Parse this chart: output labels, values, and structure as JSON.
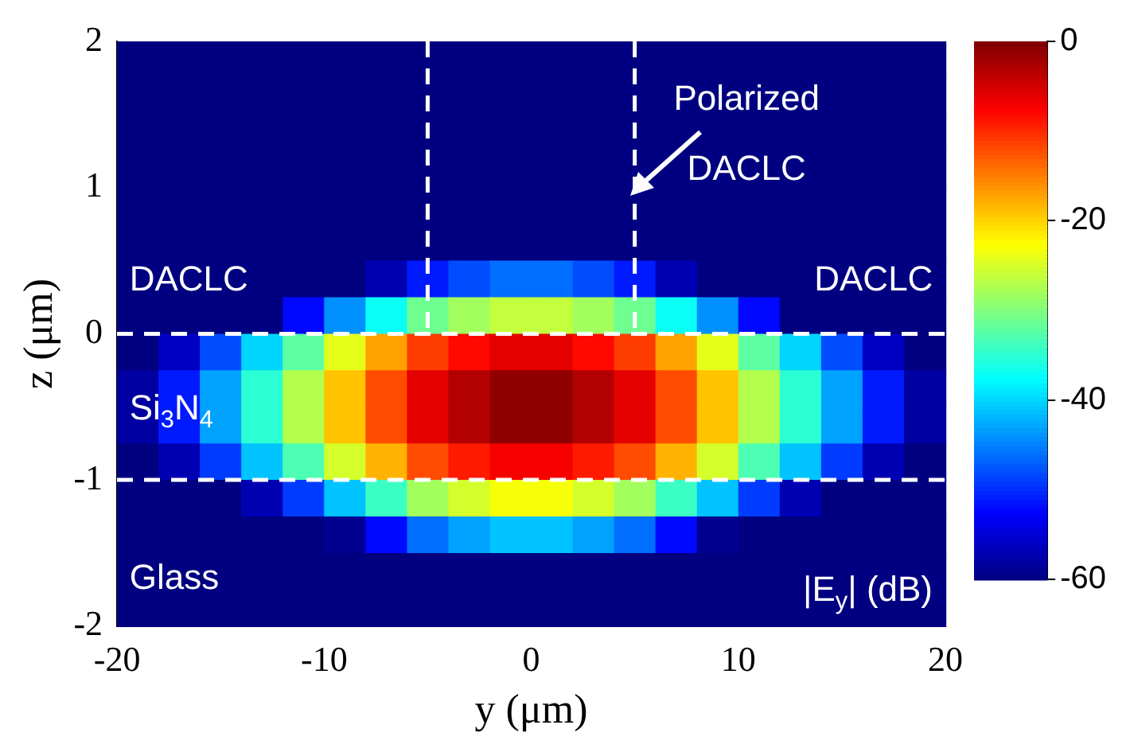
{
  "chart_data": {
    "type": "heatmap",
    "xlabel": "y (μm)",
    "ylabel": "z (μm)",
    "clabel": "|E$_{y}$| (dB)",
    "xlim": [
      -20,
      20
    ],
    "xticks": [
      -20,
      -10,
      0,
      10,
      20
    ],
    "ylim": [
      -2,
      2
    ],
    "yticks": [
      -2,
      -1,
      0,
      1,
      2
    ],
    "clim": [
      -60,
      0
    ],
    "cticks": [
      -60,
      -40,
      -20,
      0
    ],
    "ref_lines": [
      {
        "axis": "y",
        "value": 0,
        "line_style": "dashed",
        "color": "#ffffff"
      },
      {
        "axis": "y",
        "value": -1,
        "line_style": "dashed",
        "color": "#ffffff"
      },
      {
        "axis": "x",
        "value": -5,
        "line_style": "dashed",
        "color": "#ffffff"
      },
      {
        "axis": "x",
        "value": 5,
        "line_style": "dashed",
        "color": "#ffffff"
      }
    ],
    "annotations": [
      "Polarized",
      "DACLC",
      "DACLC",
      "DACLC",
      "Si$_{3}$N$_{4}$",
      "Glass"
    ],
    "cells": [
      [
        -60,
        -60,
        -60,
        -60,
        -60,
        -60,
        -60,
        -60,
        -60,
        -60,
        -60,
        -60,
        -60,
        -60,
        -60,
        -60,
        -60,
        -60,
        -60,
        -60
      ],
      [
        -60,
        -60,
        -60,
        -60,
        -60,
        -60,
        -60,
        -60,
        -60,
        -60,
        -60,
        -60,
        -60,
        -60,
        -60,
        -60,
        -60,
        -60,
        -60,
        -60
      ],
      [
        -60,
        -60,
        -60,
        -60,
        -60,
        -60,
        -60,
        -60,
        -60,
        -60,
        -60,
        -60,
        -60,
        -60,
        -60,
        -60,
        -60,
        -60,
        -60,
        -60
      ],
      [
        -60,
        -60,
        -60,
        -60,
        -60,
        -60,
        -60,
        -60,
        -60,
        -60,
        -60,
        -60,
        -60,
        -60,
        -60,
        -60,
        -60,
        -60,
        -60,
        -60
      ],
      [
        -60,
        -60,
        -60,
        -60,
        -60,
        -60,
        -60,
        -60,
        -60,
        -60,
        -60,
        -60,
        -60,
        -60,
        -60,
        -60,
        -60,
        -60,
        -60,
        -60
      ],
      [
        -60,
        -60,
        -60,
        -60,
        -60,
        -60,
        -60,
        -60,
        -60,
        -60,
        -60,
        -60,
        -60,
        -60,
        -60,
        -60,
        -60,
        -60,
        -60,
        -60
      ],
      [
        -60,
        -60,
        -60,
        -60,
        -60,
        -60,
        -57,
        -51,
        -48,
        -46,
        -46,
        -48,
        -51,
        -57,
        -60,
        -60,
        -60,
        -60,
        -60,
        -60
      ],
      [
        -60,
        -60,
        -60,
        -60,
        -52,
        -44,
        -37,
        -31,
        -28,
        -26,
        -26,
        -28,
        -31,
        -37,
        -44,
        -52,
        -60,
        -60,
        -60,
        -60
      ],
      [
        -60,
        -56,
        -48,
        -40,
        -32,
        -24,
        -17,
        -11,
        -8,
        -6,
        -6,
        -8,
        -11,
        -17,
        -24,
        -32,
        -40,
        -48,
        -56,
        -60
      ],
      [
        -58,
        -51,
        -43,
        -35,
        -27,
        -19,
        -12,
        -6,
        -3,
        -1,
        -1,
        -3,
        -6,
        -12,
        -19,
        -27,
        -35,
        -43,
        -51,
        -58
      ],
      [
        -58,
        -51,
        -43,
        -35,
        -27,
        -19,
        -12,
        -6,
        -3,
        -1,
        -1,
        -3,
        -6,
        -12,
        -19,
        -27,
        -35,
        -43,
        -51,
        -58
      ],
      [
        -60,
        -57,
        -49,
        -41,
        -33,
        -25,
        -18,
        -12,
        -9,
        -7,
        -7,
        -9,
        -12,
        -18,
        -25,
        -33,
        -41,
        -49,
        -57,
        -60
      ],
      [
        -60,
        -60,
        -60,
        -57,
        -49,
        -41,
        -34,
        -28,
        -25,
        -23,
        -23,
        -25,
        -28,
        -34,
        -41,
        -49,
        -57,
        -60,
        -60,
        -60
      ],
      [
        -60,
        -60,
        -60,
        -60,
        -60,
        -59,
        -52,
        -46,
        -43,
        -41,
        -41,
        -43,
        -46,
        -52,
        -59,
        -60,
        -60,
        -60,
        -60,
        -60
      ],
      [
        -60,
        -60,
        -60,
        -60,
        -60,
        -60,
        -60,
        -60,
        -60,
        -60,
        -60,
        -60,
        -60,
        -60,
        -60,
        -60,
        -60,
        -60,
        -60,
        -60
      ],
      [
        -60,
        -60,
        -60,
        -60,
        -60,
        -60,
        -60,
        -60,
        -60,
        -60,
        -60,
        -60,
        -60,
        -60,
        -60,
        -60,
        -60,
        -60,
        -60,
        -60
      ]
    ]
  }
}
